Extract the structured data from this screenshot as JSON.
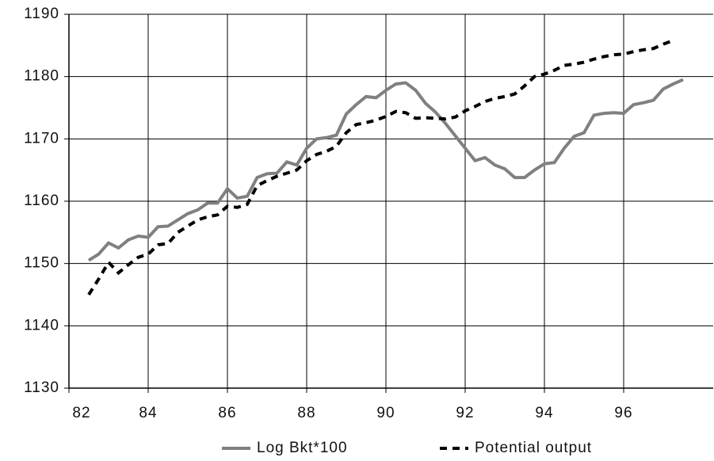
{
  "chart_data": {
    "type": "line",
    "x": [
      82.5,
      82.75,
      83,
      83.25,
      83.5,
      83.75,
      84,
      84.25,
      84.5,
      84.75,
      85,
      85.25,
      85.5,
      85.75,
      86,
      86.25,
      86.5,
      86.75,
      87,
      87.25,
      87.5,
      87.75,
      88,
      88.25,
      88.5,
      88.75,
      89,
      89.25,
      89.5,
      89.75,
      90,
      90.25,
      90.5,
      90.75,
      91,
      91.25,
      91.5,
      91.75,
      92,
      92.25,
      92.5,
      92.75,
      93,
      93.25,
      93.5,
      93.75,
      94,
      94.25,
      94.5,
      94.75,
      95,
      95.25,
      95.5,
      95.75,
      96,
      96.25,
      96.5,
      96.75,
      97,
      97.25,
      97.5
    ],
    "series": [
      {
        "name": "Log Bkt*100",
        "color": "#808080",
        "line_style": "solid",
        "values": [
          1150.5,
          1151.5,
          1153.3,
          1152.5,
          1153.8,
          1154.4,
          1154.2,
          1155.9,
          1156,
          1157,
          1158,
          1158.6,
          1159.7,
          1159.7,
          1162,
          1160.5,
          1160.8,
          1163.8,
          1164.4,
          1164.5,
          1166.3,
          1165.8,
          1168.5,
          1170,
          1170.2,
          1170.6,
          1174,
          1175.5,
          1176.8,
          1176.6,
          1177.8,
          1178.8,
          1179,
          1177.8,
          1175.7,
          1174.3,
          1172.5,
          1170.5,
          1168.5,
          1166.5,
          1167,
          1165.8,
          1165.2,
          1163.8,
          1163.8,
          1165,
          1166,
          1166.2,
          1168.5,
          1170.4,
          1171,
          1173.8,
          1174.1,
          1174.2,
          1174.1,
          1175.5,
          1175.8,
          1176.2,
          1178,
          1178.8,
          1179.5
        ]
      },
      {
        "name": "Potential output",
        "color": "#000000",
        "line_style": "dashed",
        "values": [
          1145,
          1147.5,
          1150.2,
          1148.5,
          1149.8,
          1151,
          1151.5,
          1153,
          1153.2,
          1155,
          1156,
          1157,
          1157.5,
          1157.8,
          1159.2,
          1159,
          1159.5,
          1162.5,
          1163.3,
          1164,
          1164.5,
          1165,
          1166.5,
          1167.5,
          1168,
          1168.8,
          1171,
          1172.3,
          1172.6,
          1173,
          1173.6,
          1174.4,
          1174.2,
          1173.3,
          1173.4,
          1173.3,
          1173.2,
          1173.5,
          1174.5,
          1175.2,
          1176,
          1176.5,
          1176.8,
          1177.2,
          1178.5,
          1180,
          1180.4,
          1181,
          1181.8,
          1182,
          1182.3,
          1182.8,
          1183.2,
          1183.5,
          1183.6,
          1184,
          1184.3,
          1184.5,
          1185.2,
          1185.8,
          null
        ]
      }
    ],
    "xlim": [
      82,
      98.26
    ],
    "xticks": [
      82,
      84,
      86,
      88,
      90,
      92,
      94,
      96
    ],
    "ylim": [
      1130,
      1190
    ],
    "yticks": [
      1130,
      1140,
      1150,
      1160,
      1170,
      1180,
      1190
    ],
    "grid": true,
    "legend": "bottom"
  }
}
